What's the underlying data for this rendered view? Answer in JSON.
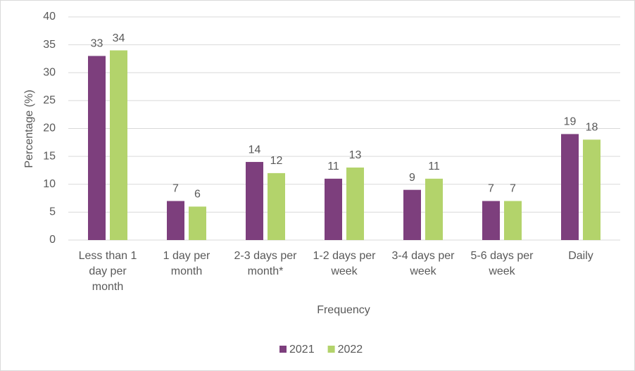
{
  "chart_data": {
    "type": "bar",
    "x_label": "Frequency",
    "y_label": "Percentage (%)",
    "categories": [
      "Less than 1 day per month",
      "1 day per month",
      "2-3 days per month*",
      "1-2 days per week",
      "3-4 days per week",
      "5-6 days per week",
      "Daily"
    ],
    "series": [
      {
        "name": "2021",
        "color": "#7d3f7d",
        "values": [
          33,
          7,
          14,
          11,
          9,
          7,
          19
        ]
      },
      {
        "name": "2022",
        "color": "#b3d36b",
        "values": [
          34,
          6,
          12,
          13,
          11,
          7,
          18
        ]
      }
    ],
    "ylim": [
      0,
      40
    ],
    "yticks": [
      0,
      5,
      10,
      15,
      20,
      25,
      30,
      35,
      40
    ],
    "grid": true,
    "legend": "bottom"
  }
}
